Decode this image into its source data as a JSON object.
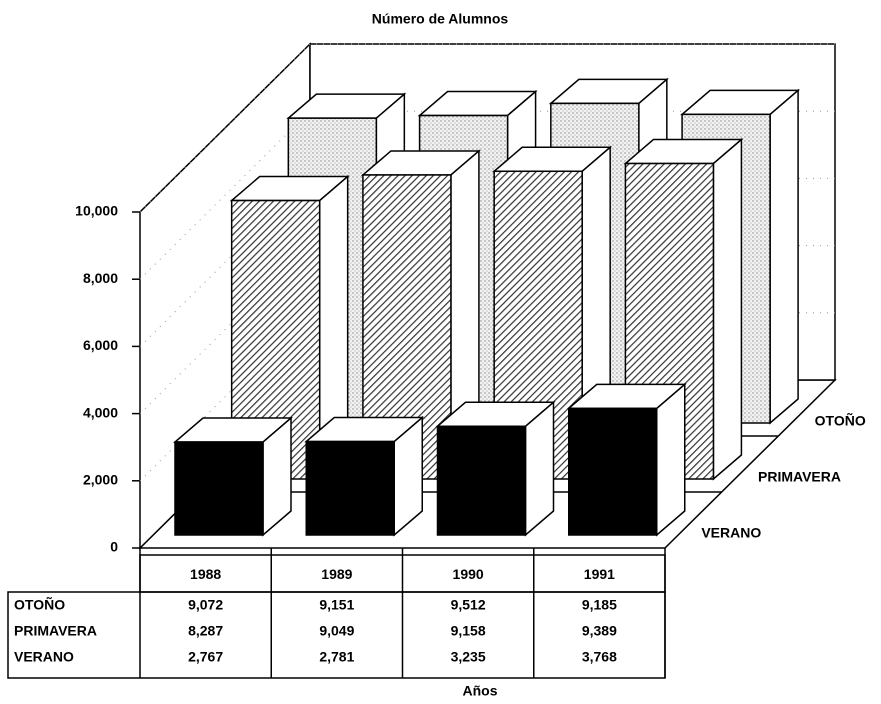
{
  "chart_data": {
    "type": "bar3d",
    "title": "Número de Alumnos",
    "x_label": "Años",
    "categories": [
      "1988",
      "1989",
      "1990",
      "1991"
    ],
    "series": [
      {
        "name": "OTOÑO",
        "color": "#e6e6e6",
        "pattern": "dots",
        "values": [
          9072,
          9151,
          9512,
          9185
        ],
        "value_labels": [
          "9,072",
          "9,151",
          "9,512",
          "9,185"
        ]
      },
      {
        "name": "PRIMAVERA",
        "color": "#ffffff",
        "pattern": "hatch",
        "values": [
          8287,
          9049,
          9158,
          9389
        ],
        "value_labels": [
          "8,287",
          "9,049",
          "9,158",
          "9,389"
        ]
      },
      {
        "name": "VERANO",
        "color": "#000000",
        "pattern": "solid",
        "values": [
          2767,
          2781,
          3235,
          3768
        ],
        "value_labels": [
          "2,767",
          "2,781",
          "3,235",
          "3,768"
        ]
      }
    ],
    "ylim": [
      0,
      10000
    ],
    "yticks": [
      0,
      {
        "value": 2000,
        "label": "2,000"
      },
      {
        "value": 4000,
        "label": "4,000"
      },
      {
        "value": 6000,
        "label": "6,000"
      },
      {
        "value": 8000,
        "label": "8,000"
      },
      {
        "value": 10000,
        "label": "10,000"
      }
    ],
    "grid": true
  }
}
